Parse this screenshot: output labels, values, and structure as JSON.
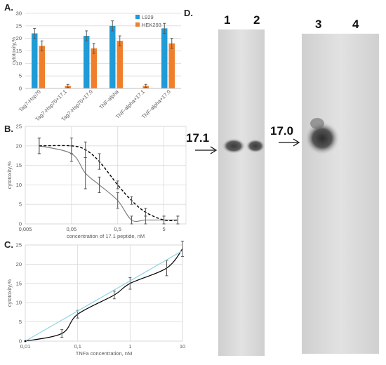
{
  "panels": {
    "a": "A.",
    "b": "B.",
    "c": "C.",
    "d": "D."
  },
  "chart_data": [
    {
      "id": "A",
      "type": "bar",
      "ylabel": "cytotoxity,%",
      "ylim": [
        0,
        30
      ],
      "yticks": [
        "0",
        "5",
        "10",
        "15",
        "20",
        "25",
        "30"
      ],
      "grid": true,
      "legend_position": "top-right",
      "categories": [
        "Tag7-Hsp70",
        "Tag7-Hsp70+17.1",
        "Tag7-Hsp70+17.0",
        "TNF-alpha",
        "TNF-alpha+17.1",
        "TNF-alpha+17.0"
      ],
      "series": [
        {
          "name": "L929",
          "color": "#1f9bd7",
          "values": [
            22,
            0,
            21,
            25,
            0,
            24
          ],
          "errors": [
            2,
            0,
            2,
            2,
            0,
            2
          ]
        },
        {
          "name": "HEK293",
          "color": "#f07f2c",
          "values": [
            17,
            1,
            16,
            19,
            1,
            18
          ],
          "errors": [
            2,
            0.6,
            2,
            2,
            0.6,
            2
          ]
        }
      ]
    },
    {
      "id": "B",
      "type": "line",
      "xlabel": "concentration of 17.1 peptide, nM",
      "ylabel": "cytotoxity,%",
      "xscale": "log",
      "xticks": [
        "0,005",
        "0,05",
        "0,5",
        "5"
      ],
      "yticks": [
        "0",
        "5",
        "10",
        "15",
        "20",
        "25"
      ],
      "ylim": [
        0,
        25
      ],
      "grid": true,
      "series": [
        {
          "style": "solid",
          "color": "#7f7f7f",
          "x": [
            0.01,
            0.05,
            0.1,
            0.2,
            0.5,
            1,
            2,
            5,
            10
          ],
          "y": [
            20,
            18,
            13,
            10,
            6,
            1,
            1,
            1,
            1
          ],
          "errors": [
            2,
            2,
            4,
            2,
            2,
            1,
            1,
            1,
            1
          ]
        },
        {
          "style": "dashed",
          "color": "#000000",
          "x": [
            0.01,
            0.05,
            0.1,
            0.2,
            0.5,
            1,
            2,
            5,
            10
          ],
          "y": [
            20,
            20,
            19,
            16,
            10,
            6,
            3,
            1,
            1
          ],
          "errors": [
            2,
            2,
            2,
            2,
            1,
            1,
            1,
            1,
            1
          ]
        }
      ]
    },
    {
      "id": "C",
      "type": "line",
      "xlabel": "TNFa concentration, nM",
      "ylabel": "cytotoxity,%",
      "xscale": "log",
      "xticks": [
        "0,01",
        "0,1",
        "1",
        "10"
      ],
      "yticks": [
        "0",
        "5",
        "10",
        "15",
        "20",
        "25"
      ],
      "ylim": [
        0,
        25
      ],
      "grid": true,
      "series": [
        {
          "style": "solid",
          "color": "#000000",
          "x": [
            0.01,
            0.05,
            0.1,
            0.5,
            1,
            5,
            10
          ],
          "y": [
            0,
            2,
            7,
            12,
            15,
            19,
            24
          ],
          "errors": [
            0,
            1,
            1,
            1,
            1.5,
            2,
            2
          ]
        },
        {
          "style": "trendline",
          "color": "#8fd3e6",
          "x": [
            0.01,
            10
          ],
          "y": [
            0,
            23.5
          ]
        }
      ]
    }
  ],
  "blot": {
    "lanes": [
      "1",
      "2",
      "3",
      "4"
    ],
    "markers": [
      "17.1",
      "17.0"
    ]
  }
}
